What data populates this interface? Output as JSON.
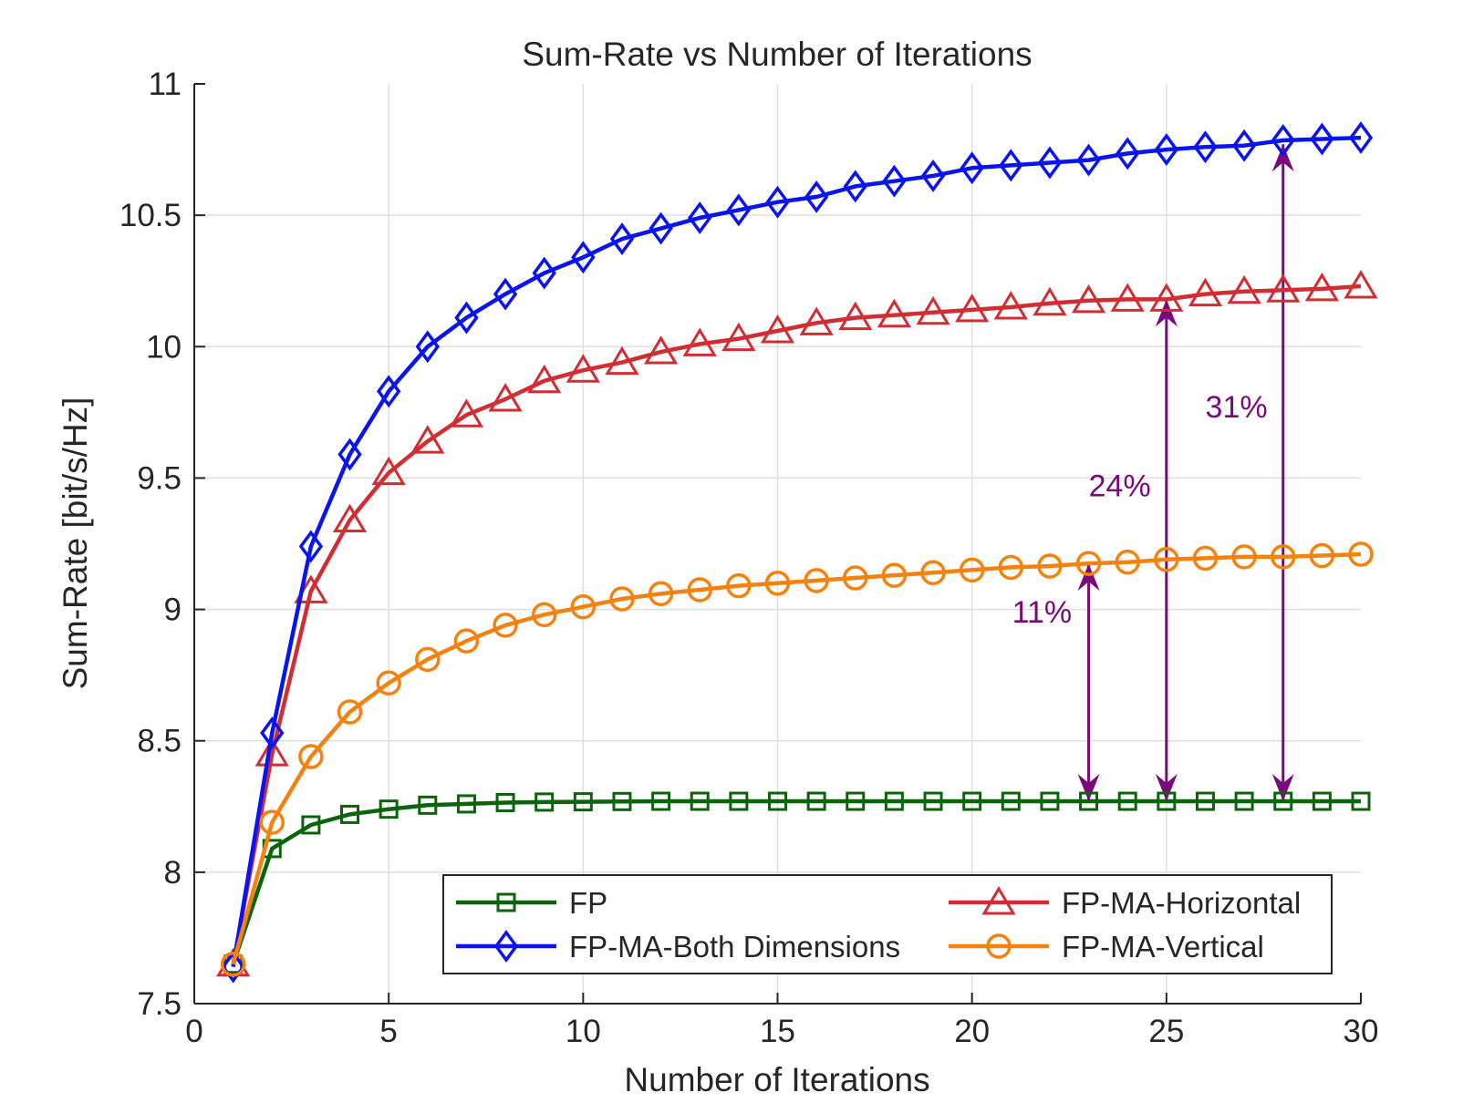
{
  "chart_data": {
    "type": "line",
    "title": "Sum-Rate vs Number of Iterations",
    "xlabel": "Number of Iterations",
    "ylabel": "Sum-Rate [bit/s/Hz]",
    "xlim": [
      0,
      30
    ],
    "ylim": [
      7.5,
      11
    ],
    "xticks": [
      0,
      5,
      10,
      15,
      20,
      25,
      30
    ],
    "yticks": [
      7.5,
      8,
      8.5,
      9,
      9.5,
      10,
      10.5,
      11
    ],
    "ytick_labels": [
      "7.5",
      "8",
      "8.5",
      "9",
      "9.5",
      "10",
      "10.5",
      "11"
    ],
    "grid": true,
    "legend_position": "bottom-right",
    "x": [
      1,
      2,
      3,
      4,
      5,
      6,
      7,
      8,
      9,
      10,
      11,
      12,
      13,
      14,
      15,
      16,
      17,
      18,
      19,
      20,
      21,
      22,
      23,
      24,
      25,
      26,
      27,
      28,
      29,
      30
    ],
    "series": [
      {
        "name": "FP",
        "color": "#0a640a",
        "marker": "square",
        "values": [
          7.65,
          8.09,
          8.18,
          8.22,
          8.24,
          8.255,
          8.26,
          8.265,
          8.267,
          8.268,
          8.269,
          8.27,
          8.27,
          8.27,
          8.27,
          8.27,
          8.27,
          8.27,
          8.27,
          8.27,
          8.27,
          8.27,
          8.27,
          8.27,
          8.27,
          8.27,
          8.27,
          8.27,
          8.27,
          8.27
        ]
      },
      {
        "name": "FP-MA-Horizontal",
        "color": "#d22d32",
        "marker": "triangle",
        "values": [
          7.65,
          8.45,
          9.07,
          9.34,
          9.52,
          9.64,
          9.74,
          9.8,
          9.87,
          9.91,
          9.94,
          9.98,
          10.01,
          10.03,
          10.06,
          10.09,
          10.11,
          10.12,
          10.13,
          10.14,
          10.15,
          10.165,
          10.175,
          10.18,
          10.18,
          10.2,
          10.21,
          10.215,
          10.22,
          10.23
        ]
      },
      {
        "name": "FP-MA-Both Dimensions",
        "color": "#0a14f0",
        "marker": "diamond",
        "values": [
          7.64,
          8.53,
          9.24,
          9.59,
          9.83,
          10.0,
          10.11,
          10.2,
          10.28,
          10.34,
          10.41,
          10.45,
          10.49,
          10.52,
          10.55,
          10.57,
          10.61,
          10.63,
          10.65,
          10.68,
          10.69,
          10.7,
          10.71,
          10.735,
          10.75,
          10.76,
          10.765,
          10.785,
          10.79,
          10.795
        ]
      },
      {
        "name": "FP-MA-Vertical",
        "color": "#f5820f",
        "marker": "circle",
        "values": [
          7.65,
          8.19,
          8.44,
          8.61,
          8.72,
          8.81,
          8.88,
          8.94,
          8.98,
          9.01,
          9.04,
          9.06,
          9.075,
          9.09,
          9.1,
          9.11,
          9.12,
          9.13,
          9.14,
          9.15,
          9.16,
          9.165,
          9.175,
          9.18,
          9.19,
          9.195,
          9.2,
          9.2,
          9.205,
          9.21
        ]
      }
    ],
    "annotations": [
      {
        "text": "11%",
        "x": 23,
        "y_from": 8.27,
        "y_to": 9.175,
        "label_x": 21.8,
        "label_y": 8.95
      },
      {
        "text": "24%",
        "x": 25,
        "y_from": 8.27,
        "y_to": 10.18,
        "label_x": 23.8,
        "label_y": 9.43
      },
      {
        "text": "31%",
        "x": 28,
        "y_from": 8.27,
        "y_to": 10.77,
        "label_x": 26.8,
        "label_y": 9.73
      }
    ],
    "annotation_color": "#7a0a7a"
  }
}
